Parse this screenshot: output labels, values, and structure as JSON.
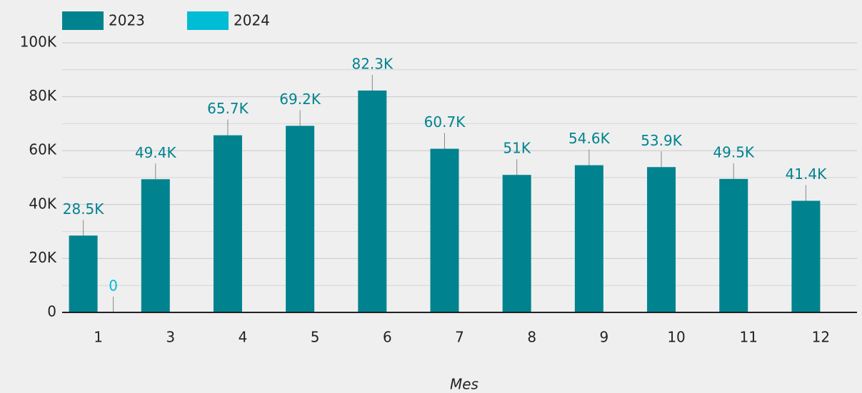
{
  "chart_data": {
    "type": "bar",
    "x_label": "Mes",
    "categories": [
      "1",
      "3",
      "4",
      "5",
      "6",
      "7",
      "8",
      "9",
      "10",
      "11",
      "12"
    ],
    "series": [
      {
        "name": "2023",
        "color": "#00838f",
        "values": [
          28500,
          49400,
          65700,
          69200,
          82300,
          60700,
          51000,
          54600,
          53900,
          49500,
          41400
        ],
        "value_labels": [
          "28.5K",
          "49.4K",
          "65.7K",
          "69.2K",
          "82.3K",
          "60.7K",
          "51K",
          "54.6K",
          "53.9K",
          "49.5K",
          "41.4K"
        ]
      },
      {
        "name": "2024",
        "color": "#00bcd4",
        "values": [
          0,
          null,
          null,
          null,
          null,
          null,
          null,
          null,
          null,
          null,
          null
        ],
        "value_labels": [
          "0",
          null,
          null,
          null,
          null,
          null,
          null,
          null,
          null,
          null,
          null
        ]
      }
    ],
    "ylim": [
      0,
      100000
    ],
    "yticks": [
      0,
      {
        "value": 20000,
        "label": "20K"
      },
      {
        "value": 40000,
        "label": "40K"
      },
      {
        "value": 60000,
        "label": "60K"
      },
      {
        "value": 80000,
        "label": "80K"
      },
      {
        "value": 100000,
        "label": "100K"
      }
    ],
    "grid": true,
    "minor_grid": true,
    "legend": "top-left"
  }
}
